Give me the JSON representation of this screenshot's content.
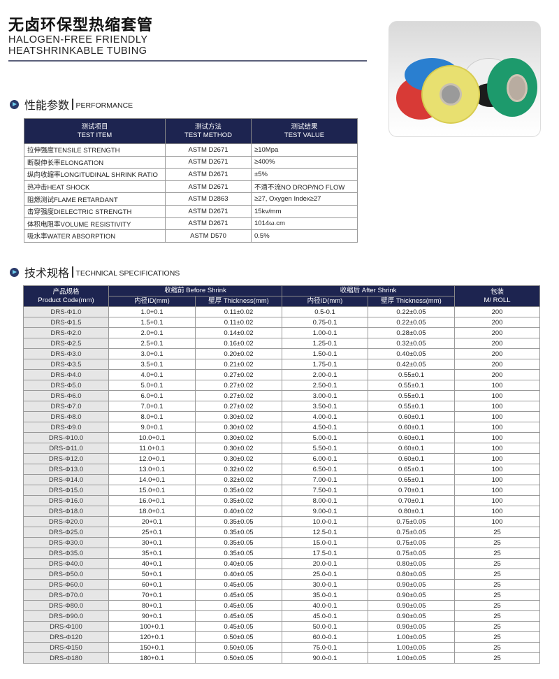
{
  "header": {
    "title_cn": "无卤环保型热缩套管",
    "title_en_line1": "HALOGEN-FREE FRIENDLY",
    "title_en_line2": "HEATSHRINKABLE TUBING"
  },
  "photo": {
    "roll_colors": [
      "#d83a36",
      "#2a7fd0",
      "#f0f0f0",
      "#1c1c1c",
      "#e8e070",
      "#1d9a6c"
    ]
  },
  "performance": {
    "heading_cn": "性能参数",
    "heading_en": "PERFORMANCE",
    "columns": [
      {
        "cn": "测试项目",
        "en": "TEST ITEM"
      },
      {
        "cn": "测试方法",
        "en": "TEST METHOD"
      },
      {
        "cn": "测试结果",
        "en": "TEST VALUE"
      }
    ],
    "rows": [
      [
        "拉伸强度TENSILE STRENGTH",
        "ASTM D2671",
        "≥10Mpa"
      ],
      [
        "断裂伸长率ELONGATION",
        "ASTM D2671",
        "≥400%"
      ],
      [
        "纵向收缩率LONGITUDINAL SHRINK RATIO",
        "ASTM D2671",
        "±5%"
      ],
      [
        "热冲击HEAT SHOCK",
        "ASTM D2671",
        "不滴不流NO DROP/NO FLOW"
      ],
      [
        "阻燃测试FLAME RETARDANT",
        "ASTM D2863",
        "≥27, Oxygen Index≥27"
      ],
      [
        "击穿强度DIELECTRIC STRENGTH",
        "ASTM D2671",
        "15kv/mm"
      ],
      [
        "体积电阻率VOLUME RESISTIVITY",
        "ASTM D2671",
        "1014ω.cm"
      ],
      [
        "吸水率WATER ABSORPTION",
        "ASTM D570",
        "0.5%"
      ]
    ]
  },
  "specs": {
    "heading_cn": "技术规格",
    "heading_en": "TECHNICAL SPECIFICATIONS",
    "product_code_cn": "产品规格",
    "product_code_en": "Product Code(mm)",
    "before": "收缩前 Before Shrink",
    "after": "收缩后 After Shrink",
    "packing_cn": "包装",
    "packing_en": "M/ ROLL",
    "id_label": "内径ID(mm)",
    "thickness_label": "壁厚 Thickness(mm)",
    "rows": [
      [
        "DRS-Φ1.0",
        "1.0+0.1",
        "0.11±0.02",
        "0.5-0.1",
        "0.22±0.05",
        "200"
      ],
      [
        "DRS-Φ1.5",
        "1.5+0.1",
        "0.11±0.02",
        "0.75-0.1",
        "0.22±0.05",
        "200"
      ],
      [
        "DRS-Φ2.0",
        "2.0+0.1",
        "0.14±0.02",
        "1.00-0.1",
        "0.28±0.05",
        "200"
      ],
      [
        "DRS-Φ2.5",
        "2.5+0.1",
        "0.16±0.02",
        "1.25-0.1",
        "0.32±0.05",
        "200"
      ],
      [
        "DRS-Φ3.0",
        "3.0+0.1",
        "0.20±0.02",
        "1.50-0.1",
        "0.40±0.05",
        "200"
      ],
      [
        "DRS-Φ3.5",
        "3.5+0.1",
        "0.21±0.02",
        "1.75-0.1",
        "0.42±0.05",
        "200"
      ],
      [
        "DRS-Φ4.0",
        "4.0+0.1",
        "0.27±0.02",
        "2.00-0.1",
        "0.55±0.1",
        "200"
      ],
      [
        "DRS-Φ5.0",
        "5.0+0.1",
        "0.27±0.02",
        "2.50-0.1",
        "0.55±0.1",
        "100"
      ],
      [
        "DRS-Φ6.0",
        "6.0+0.1",
        "0.27±0.02",
        "3.00-0.1",
        "0.55±0.1",
        "100"
      ],
      [
        "DRS-Φ7.0",
        "7.0+0.1",
        "0.27±0.02",
        "3.50-0.1",
        "0.55±0.1",
        "100"
      ],
      [
        "DRS-Φ8.0",
        "8.0+0.1",
        "0.30±0.02",
        "4.00-0.1",
        "0.60±0.1",
        "100"
      ],
      [
        "DRS-Φ9.0",
        "9.0+0.1",
        "0.30±0.02",
        "4.50-0.1",
        "0.60±0.1",
        "100"
      ],
      [
        "DRS-Φ10.0",
        "10.0+0.1",
        "0.30±0.02",
        "5.00-0.1",
        "0.60±0.1",
        "100"
      ],
      [
        "DRS-Φ11.0",
        "11.0+0.1",
        "0.30±0.02",
        "5.50-0.1",
        "0.60±0.1",
        "100"
      ],
      [
        "DRS-Φ12.0",
        "12.0+0.1",
        "0.30±0.02",
        "6.00-0.1",
        "0.60±0.1",
        "100"
      ],
      [
        "DRS-Φ13.0",
        "13.0+0.1",
        "0.32±0.02",
        "6.50-0.1",
        "0.65±0.1",
        "100"
      ],
      [
        "DRS-Φ14.0",
        "14.0+0.1",
        "0.32±0.02",
        "7.00-0.1",
        "0.65±0.1",
        "100"
      ],
      [
        "DRS-Φ15.0",
        "15.0+0.1",
        "0.35±0.02",
        "7.50-0.1",
        "0.70±0.1",
        "100"
      ],
      [
        "DRS-Φ16.0",
        "16.0+0.1",
        "0.35±0.02",
        "8.00-0.1",
        "0.70±0.1",
        "100"
      ],
      [
        "DRS-Φ18.0",
        "18.0+0.1",
        "0.40±0.02",
        "9.00-0.1",
        "0.80±0.1",
        "100"
      ],
      [
        "DRS-Φ20.0",
        "20+0.1",
        "0.35±0.05",
        "10.0-0.1",
        "0.75±0.05",
        "100"
      ],
      [
        "DRS-Φ25.0",
        "25+0.1",
        "0.35±0.05",
        "12.5-0.1",
        "0.75±0.05",
        "25"
      ],
      [
        "DRS-Φ30.0",
        "30+0.1",
        "0.35±0.05",
        "15.0-0.1",
        "0.75±0.05",
        "25"
      ],
      [
        "DRS-Φ35.0",
        "35+0.1",
        "0.35±0.05",
        "17.5-0.1",
        "0.75±0.05",
        "25"
      ],
      [
        "DRS-Φ40.0",
        "40+0.1",
        "0.40±0.05",
        "20.0-0.1",
        "0.80±0.05",
        "25"
      ],
      [
        "DRS-Φ50.0",
        "50+0.1",
        "0.40±0.05",
        "25.0-0.1",
        "0.80±0.05",
        "25"
      ],
      [
        "DRS-Φ60.0",
        "60+0.1",
        "0.45±0.05",
        "30.0-0.1",
        "0.90±0.05",
        "25"
      ],
      [
        "DRS-Φ70.0",
        "70+0.1",
        "0.45±0.05",
        "35.0-0.1",
        "0.90±0.05",
        "25"
      ],
      [
        "DRS-Φ80.0",
        "80+0.1",
        "0.45±0.05",
        "40.0-0.1",
        "0.90±0.05",
        "25"
      ],
      [
        "DRS-Φ90.0",
        "90+0.1",
        "0.45±0.05",
        "45.0-0.1",
        "0.90±0.05",
        "25"
      ],
      [
        "DRS-Φ100",
        "100+0.1",
        "0.45±0.05",
        "50.0-0.1",
        "0.90±0.05",
        "25"
      ],
      [
        "DRS-Φ120",
        "120+0.1",
        "0.50±0.05",
        "60.0-0.1",
        "1.00±0.05",
        "25"
      ],
      [
        "DRS-Φ150",
        "150+0.1",
        "0.50±0.05",
        "75.0-0.1",
        "1.00±0.05",
        "25"
      ],
      [
        "DRS-Φ180",
        "180+0.1",
        "0.50±0.05",
        "90.0-0.1",
        "1.00±0.05",
        "25"
      ]
    ]
  }
}
